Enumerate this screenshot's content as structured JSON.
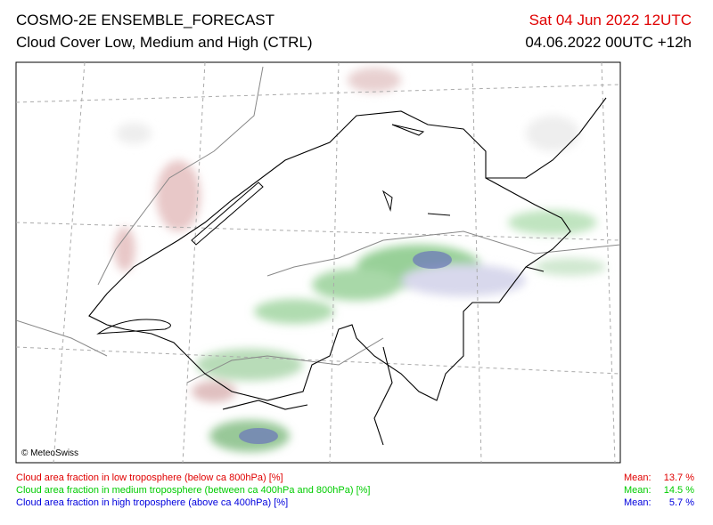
{
  "header": {
    "title": "COSMO-2E ENSEMBLE_FORECAST",
    "subtitle": "Cloud Cover Low, Medium and High (CTRL)",
    "valid_time": "Sat 04 Jun 2022 12UTC",
    "run_time": "04.06.2022 00UTC +12h"
  },
  "map": {
    "copyright": "© MeteoSwiss"
  },
  "legend": [
    {
      "text": "Cloud area fraction in low troposphere (below ca 800hPa) [%]",
      "mean_label": "Mean:",
      "mean": "13.7 %",
      "color": "#e00000"
    },
    {
      "text": "Cloud area fraction in medium troposphere (between ca 400hPa and 800hPa) [%]",
      "mean_label": "Mean:",
      "mean": "14.5 %",
      "color": "#00cc00"
    },
    {
      "text": "Cloud area fraction in high troposphere (above ca 400hPa) [%]",
      "mean_label": "Mean:",
      "mean": "5.7 %",
      "color": "#0000dd"
    }
  ]
}
